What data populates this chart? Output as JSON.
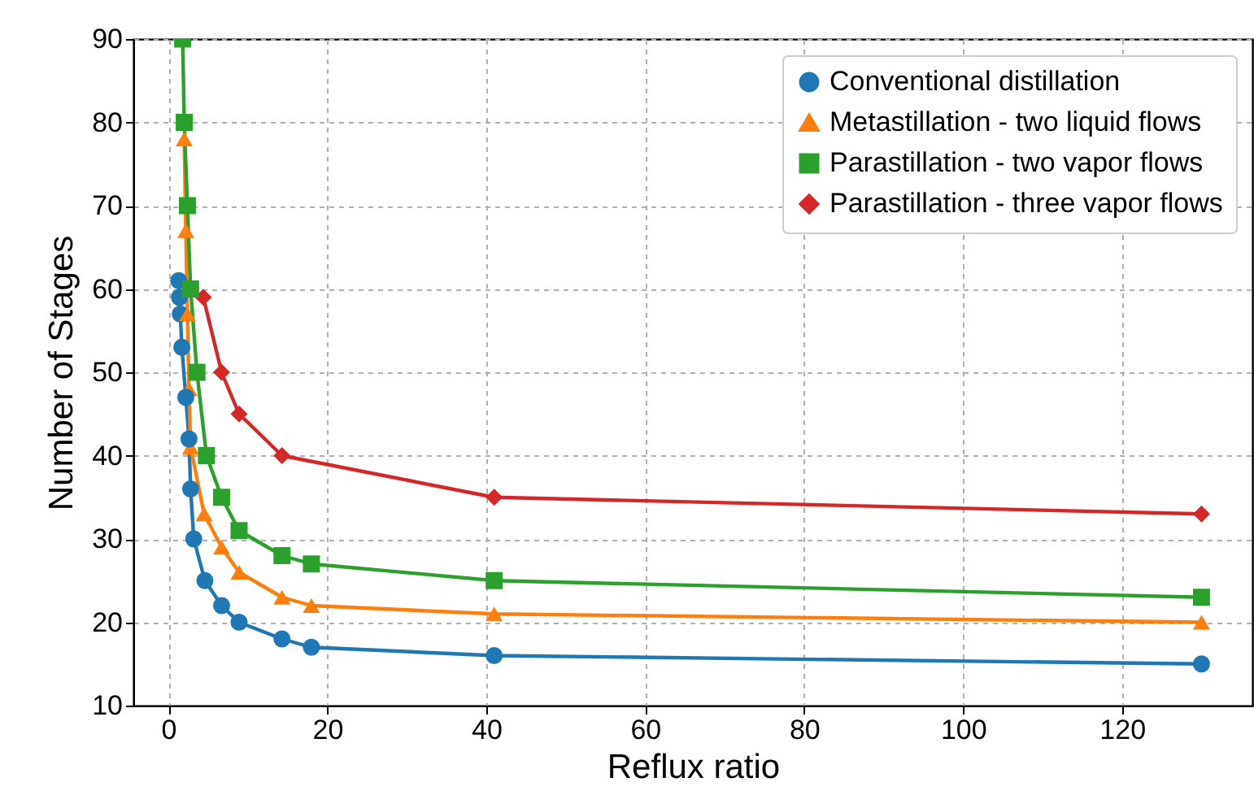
{
  "chart_data": {
    "type": "line",
    "xlabel": "Reflux ratio",
    "ylabel": "Number of Stages",
    "xlim": [
      -4.4,
      136.4
    ],
    "xticks": [
      0,
      20,
      40,
      60,
      80,
      100,
      120
    ],
    "ylim": [
      10,
      90
    ],
    "yticks": [
      10,
      20,
      30,
      40,
      50,
      60,
      70,
      80,
      90
    ],
    "grid": true,
    "legend": "top right",
    "line_style": "solid",
    "series": [
      {
        "name": "Conventional distillation",
        "color": "#1f77b4",
        "marker": "circle",
        "x": [
          1.3,
          1.4,
          1.5,
          1.7,
          2.2,
          2.6,
          2.8,
          3.2,
          4.6,
          6.7,
          8.9,
          14.3,
          18,
          41,
          130
        ],
        "values": [
          61,
          59,
          57,
          53,
          47,
          42,
          36,
          30,
          25,
          22,
          20,
          18,
          17,
          16,
          15
        ]
      },
      {
        "name": "Metastillation - two liquid flows",
        "color": "#ff7f0e",
        "marker": "triangle",
        "x": [
          2.0,
          2.2,
          2.4,
          2.6,
          2.8,
          4.5,
          6.7,
          8.9,
          14.3,
          18,
          41,
          130
        ],
        "values": [
          78,
          67,
          57,
          48,
          41,
          33,
          29,
          26,
          23,
          22,
          21,
          20
        ]
      },
      {
        "name": "Parastillation - two vapor flows",
        "color": "#2ca02c",
        "marker": "square",
        "x": [
          1.8,
          2.0,
          2.4,
          2.8,
          3.6,
          4.8,
          6.7,
          8.9,
          14.3,
          18,
          41,
          130
        ],
        "values": [
          90,
          80,
          70,
          60,
          50,
          40,
          35,
          31,
          28,
          27,
          25,
          23
        ]
      },
      {
        "name": "Parastillation - three vapor flows",
        "color": "#d62728",
        "marker": "diamond",
        "x": [
          4.4,
          6.7,
          8.9,
          14.3,
          41,
          130
        ],
        "values": [
          59,
          50,
          45,
          40,
          35,
          33
        ]
      }
    ]
  }
}
